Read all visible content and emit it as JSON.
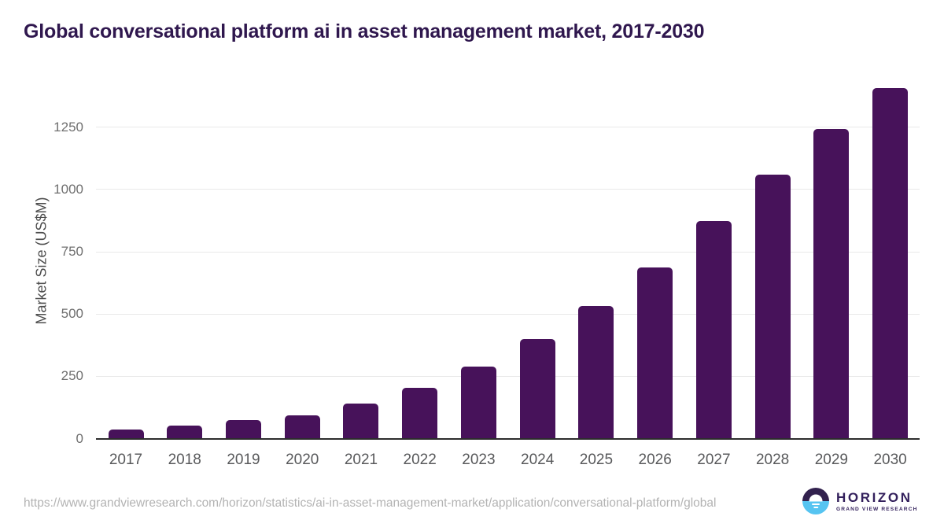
{
  "page": {
    "source_url": "https://www.grandviewresearch.com/horizon/statistics/ai-in-asset-management-market/application/conversational-platform/global"
  },
  "logo": {
    "name": "HORIZON",
    "subtitle": "GRAND VIEW RESEARCH",
    "purple": "#32214E",
    "blue": "#56C4F1"
  },
  "chart_data": {
    "type": "bar",
    "title": "Global conversational platform ai in asset management market, 2017-2030",
    "categories": [
      "2017",
      "2018",
      "2019",
      "2020",
      "2021",
      "2022",
      "2023",
      "2024",
      "2025",
      "2026",
      "2027",
      "2028",
      "2029",
      "2030"
    ],
    "values": [
      35,
      51,
      75,
      92,
      142,
      205,
      290,
      398,
      533,
      688,
      872,
      1060,
      1244,
      1408
    ],
    "xlabel": "",
    "ylabel": "Market Size (US$M)",
    "ylim": [
      0,
      1450
    ],
    "yticks": [
      0,
      250,
      500,
      750,
      1000,
      1250
    ],
    "grid": true,
    "legend": false,
    "bar_color": "#47125A",
    "gridline_color": "#E9E9E9",
    "axis_line_color": "#2D2D2D"
  }
}
